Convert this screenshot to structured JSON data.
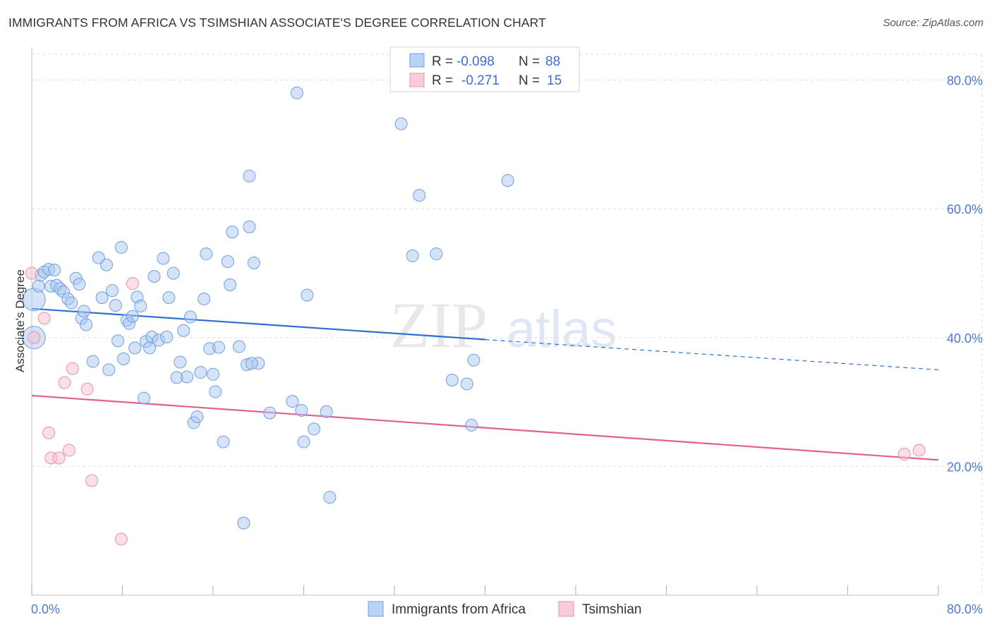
{
  "header": {
    "title": "IMMIGRANTS FROM AFRICA VS TSIMSHIAN ASSOCIATE'S DEGREE CORRELATION CHART",
    "source": "Source: ZipAtlas.com"
  },
  "watermark": {
    "part1": "ZIP",
    "part2": "atlas"
  },
  "chart_data": {
    "type": "scatter",
    "title": "IMMIGRANTS FROM AFRICA VS TSIMSHIAN ASSOCIATE'S DEGREE CORRELATION CHART",
    "xlabel": "",
    "ylabel": "Associate's Degree",
    "xlim": [
      0,
      80
    ],
    "ylim": [
      0,
      84
    ],
    "x_tick_labels": [
      "0.0%",
      "80.0%"
    ],
    "y_ticks": [
      20,
      40,
      60,
      80
    ],
    "y_tick_labels": [
      "20.0%",
      "40.0%",
      "60.0%",
      "80.0%"
    ],
    "grid": true,
    "legend_position": "top-center",
    "series": [
      {
        "name": "Immigrants from Africa",
        "color": "#a9c8f2",
        "stroke": "#6f9fdf",
        "line_color": "#2f6fd0",
        "R": "-0.098",
        "N": "88",
        "trend": {
          "x0": 0,
          "y0": 44.5,
          "x1": 40,
          "y1": 39.7,
          "dashed_to_x": 80,
          "dashed_y": 35.0
        },
        "points": [
          [
            0.2,
            45.9
          ],
          [
            0.2,
            40.0
          ],
          [
            0.6,
            48.0
          ],
          [
            0.8,
            49.7
          ],
          [
            1.1,
            50.2
          ],
          [
            1.5,
            50.6
          ],
          [
            1.7,
            48.0
          ],
          [
            2.0,
            50.5
          ],
          [
            2.2,
            48.1
          ],
          [
            2.5,
            47.6
          ],
          [
            2.8,
            47.1
          ],
          [
            3.2,
            46.0
          ],
          [
            3.5,
            45.4
          ],
          [
            3.9,
            49.2
          ],
          [
            4.2,
            48.3
          ],
          [
            4.4,
            43.0
          ],
          [
            4.6,
            44.1
          ],
          [
            4.8,
            42.0
          ],
          [
            5.4,
            36.3
          ],
          [
            5.9,
            52.4
          ],
          [
            6.2,
            46.2
          ],
          [
            6.6,
            51.3
          ],
          [
            6.8,
            35.0
          ],
          [
            7.1,
            47.3
          ],
          [
            7.4,
            45.0
          ],
          [
            7.6,
            39.5
          ],
          [
            7.9,
            54.0
          ],
          [
            8.1,
            36.7
          ],
          [
            8.4,
            42.7
          ],
          [
            8.6,
            42.2
          ],
          [
            8.9,
            43.3
          ],
          [
            9.1,
            38.4
          ],
          [
            9.3,
            46.3
          ],
          [
            9.6,
            44.9
          ],
          [
            9.9,
            30.6
          ],
          [
            10.1,
            39.4
          ],
          [
            10.4,
            38.4
          ],
          [
            10.6,
            40.1
          ],
          [
            10.8,
            49.5
          ],
          [
            11.2,
            39.6
          ],
          [
            11.6,
            52.3
          ],
          [
            11.9,
            40.1
          ],
          [
            12.1,
            46.2
          ],
          [
            12.5,
            50.0
          ],
          [
            12.8,
            33.8
          ],
          [
            13.1,
            36.2
          ],
          [
            13.4,
            41.1
          ],
          [
            13.7,
            33.9
          ],
          [
            14.0,
            43.2
          ],
          [
            14.3,
            26.8
          ],
          [
            14.6,
            27.7
          ],
          [
            14.9,
            34.6
          ],
          [
            15.2,
            46.0
          ],
          [
            15.4,
            53.0
          ],
          [
            15.7,
            38.3
          ],
          [
            16.0,
            34.3
          ],
          [
            16.2,
            31.6
          ],
          [
            16.5,
            38.5
          ],
          [
            16.9,
            23.8
          ],
          [
            17.3,
            51.8
          ],
          [
            17.5,
            48.2
          ],
          [
            17.7,
            56.4
          ],
          [
            18.3,
            38.6
          ],
          [
            19.0,
            35.8
          ],
          [
            19.2,
            57.2
          ],
          [
            19.6,
            51.6
          ],
          [
            20.0,
            36.0
          ],
          [
            21.0,
            28.3
          ],
          [
            23.0,
            30.1
          ],
          [
            23.4,
            78.0
          ],
          [
            23.8,
            28.7
          ],
          [
            24.0,
            23.8
          ],
          [
            24.3,
            46.6
          ],
          [
            24.9,
            25.8
          ],
          [
            26.0,
            28.5
          ],
          [
            26.3,
            15.2
          ],
          [
            19.2,
            65.1
          ],
          [
            19.4,
            36.0
          ],
          [
            18.7,
            11.2
          ],
          [
            32.6,
            73.2
          ],
          [
            33.6,
            52.7
          ],
          [
            34.2,
            62.1
          ],
          [
            35.7,
            53.0
          ],
          [
            37.1,
            33.4
          ],
          [
            38.4,
            32.8
          ],
          [
            38.8,
            26.4
          ],
          [
            39.0,
            36.5
          ],
          [
            42.0,
            64.4
          ]
        ]
      },
      {
        "name": "Tsimshian",
        "color": "#f5c0d0",
        "stroke": "#e890aa",
        "line_color": "#e0628f",
        "R": "-0.271",
        "N": "15",
        "trend": {
          "x0": 0,
          "y0": 31.0,
          "x1": 80,
          "y1": 21.0
        },
        "points": [
          [
            0.0,
            50.0
          ],
          [
            0.2,
            40.0
          ],
          [
            1.1,
            43.0
          ],
          [
            1.5,
            25.2
          ],
          [
            1.7,
            21.3
          ],
          [
            2.4,
            21.3
          ],
          [
            2.9,
            33.0
          ],
          [
            3.3,
            22.5
          ],
          [
            3.6,
            35.2
          ],
          [
            4.9,
            32.0
          ],
          [
            5.3,
            17.8
          ],
          [
            7.9,
            8.7
          ],
          [
            8.9,
            48.4
          ],
          [
            77.0,
            21.9
          ],
          [
            78.3,
            22.5
          ]
        ]
      }
    ]
  },
  "legend": {
    "r_label": "R =",
    "n_label": "N =",
    "africa_r": "-0.098",
    "africa_n": "88",
    "tsim_r": "-0.271",
    "tsim_n": "15"
  },
  "bottom_legend": {
    "africa": "Immigrants from Africa",
    "tsim": "Tsimshian"
  }
}
